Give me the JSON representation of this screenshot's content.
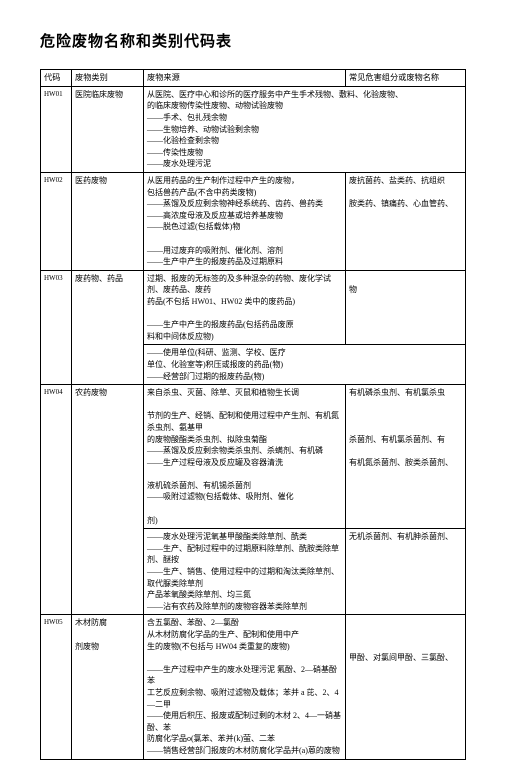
{
  "title": "危险废物名称和类别代码表",
  "header": {
    "c1": "代码",
    "c2": "废物类别",
    "c3": "废物来源",
    "c4_top": "常见危害组分或废物名称",
    "c3b": "",
    "c4b": ""
  },
  "rows": {
    "r1": {
      "code": "HW01",
      "category": "医院临床废物",
      "source_lines": [
        "从医院、医疗中心和诊所的医疗服务中产生手术残物、敷料、化验废物、",
        "的临床废物传染性废物、动物试验废物",
        "——手术、包扎残余物",
        "——生物培养、动物试验剩余物",
        "——化验检查剩余物",
        "——传染性废物",
        "——废水处理污泥"
      ],
      "names": ""
    },
    "r2": {
      "code": "HW02",
      "category": "医药废物",
      "source_lines": [
        "从医用药品的生产制作过程中产生的废物，",
        "包括兽药产品(不含中药类废物)",
        "——蒸馏及反应剩余物神经系统药、齿药、兽药类",
        "——高浓度母液及反应基或培养基废物",
        "——脱色过滤(包括载体)物",
        "",
        "——用过废弃的吸附剂、催化剂、溶剂",
        "——生产中产生的报废药品及过期原料"
      ],
      "name_lines": [
        "废抗菌药、盐类药、抗组织",
        "胺类药、镇痛药、心血管药、"
      ]
    },
    "r3a": {
      "code": "HW03",
      "category": "废药物、药品",
      "source_a_lines": [
        "过期、报废的无标签的及多种混杂的药物、废化学试剂、废药品、废药",
        "药品(不包括 HW01、HW02 类中的废药品)",
        "",
        "——生产中产生的报废药品(包括药品废原",
        "料和中间体反应物)"
      ],
      "name_a_lines": [
        "物"
      ],
      "source_b_lines": [
        "——使用单位(科研、监测、学校、医疗",
        "单位、化验室等)积压或报废的药品(物)",
        "——经营部门过期的报废药品(物)"
      ]
    },
    "r4": {
      "code": "HW04",
      "category": "农药废物",
      "source_lines": [
        "来自杀虫、灭菌、除草、灭鼠和植物生长调",
        "",
        "节剂的生产、经销、配制和使用过程中产生剂、有机氮杀虫剂、氨基甲",
        "的废物酸酯类杀虫剂、拟除虫菊酯",
        "——蒸馏及反应剩余物类杀虫剂、杀螨剂、有机磷",
        "——生产过程母液及反应罐及容器清洗",
        "",
        "液机硫杀菌剂、有机锡杀菌剂",
        "——吸附过滤物(包括载体、吸附剂、催化",
        "",
        "剂)"
      ],
      "name_lines": [
        "有机磷杀虫剂、有机氯杀虫",
        "",
        "",
        "",
        "杀菌剂、有机氯杀菌剂、有",
        "",
        "有机氮杀菌剂、胺类杀菌剂、"
      ],
      "source2_lines": [
        "——废水处理污泥氧基甲酸酯类除草剂、酰类",
        "——生产、配制过程中的过期原料除草剂、酰胺类除草剂、醚按",
        "——生产、销售、使用过程中的过期和淘汰类除草剂、取代脲类除草剂",
        "产品苯氧酸类除草剂、均三氮",
        "——沾有农药及除草剂的废物容器苯类除草剂"
      ],
      "name2_lines": [
        "无机杀菌剂、有机胂杀菌剂、"
      ]
    },
    "r5": {
      "code": "HW05",
      "category": "木材防腐",
      "cat_extra": "剂废物",
      "source_lines": [
        "含五氯酚、苯酚、2—氯酚",
        "从木材防腐化学品的生产、配制和使用中产",
        "生的废物(不包括与 HW04 类重复的废物)",
        "",
        "——生产过程中产生的废水处理污泥 氟酚、2—硝基酚 苯",
        "工艺反应剩余物、吸附过滤物及载体；苯并 a 芘、2、4—二甲",
        "——使用后积压、报废或配制过剩的木材 2、4—一硝基酚、苯",
        "防腐化学品o(氯苯、苯并(k)萤、二苯",
        "——销售经营部门报废的木材防腐化学品并(a)蒽的废物"
      ],
      "name_lines": [
        "甲酚、对氯间甲酚、三氯酚、"
      ]
    }
  }
}
